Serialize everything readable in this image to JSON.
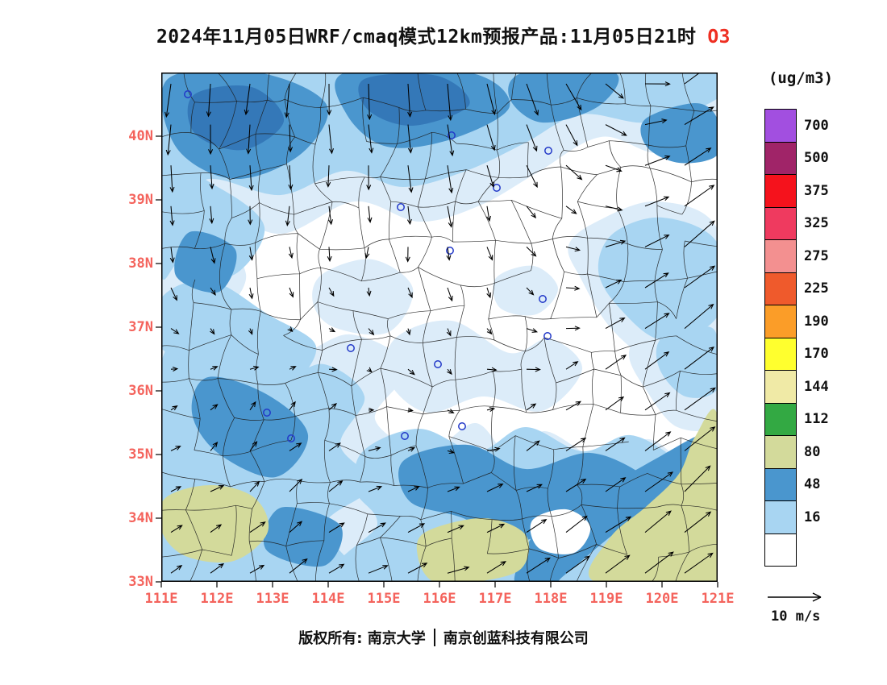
{
  "title": {
    "main": "2024年11月05日WRF/cmaq模式12km预报产品:11月05日21时",
    "species": "O3"
  },
  "colors": {
    "axis_labels": "#f4635c",
    "species_accent": "#ee2f22",
    "boundary_lines": "#1b1b1b",
    "city_marker": "#2238c8",
    "frame": "#000000"
  },
  "axes": {
    "lat_labels": [
      "40N",
      "39N",
      "38N",
      "37N",
      "36N",
      "35N",
      "34N",
      "33N"
    ],
    "lon_labels": [
      "111E",
      "112E",
      "113E",
      "114E",
      "115E",
      "116E",
      "117E",
      "118E",
      "119E",
      "120E",
      "121E"
    ],
    "lat_range": [
      33,
      41
    ],
    "lon_range": [
      111,
      121
    ]
  },
  "colorbar": {
    "unit": "(ug/m3)",
    "cells": [
      {
        "label": "700",
        "color": "#a24fe0"
      },
      {
        "label": "500",
        "color": "#a02468"
      },
      {
        "label": "375",
        "color": "#f5121c"
      },
      {
        "label": "325",
        "color": "#ef3a5f"
      },
      {
        "label": "275",
        "color": "#f39090"
      },
      {
        "label": "225",
        "color": "#ef5a2c"
      },
      {
        "label": "190",
        "color": "#fb9d28"
      },
      {
        "label": "170",
        "color": "#ffff2e"
      },
      {
        "label": "144",
        "color": "#f0eaa6"
      },
      {
        "label": "112",
        "color": "#33a943"
      },
      {
        "label": "80",
        "color": "#d3da9b"
      },
      {
        "label": "48",
        "color": "#4a96ce"
      },
      {
        "label": "16",
        "color": "#a8d5f2"
      },
      {
        "label": "",
        "color": "#ffffff"
      }
    ]
  },
  "wind_legend": {
    "label": "10 m/s",
    "reference_speed": 10
  },
  "footer": {
    "part1": "版权所有: 南京大学",
    "part2": "南京创蓝科技有限公司"
  },
  "chart_data": {
    "type": "heatmap",
    "subtype": "filled-contour concentration map with wind vectors",
    "title": "O3 surface concentration forecast, WRF/CMAQ 12km, 2024-11-05 21:00 local",
    "unit": "ug/m3",
    "lon_range": [
      111,
      121
    ],
    "lat_range": [
      33,
      41
    ],
    "levels": [
      16,
      48,
      80,
      112,
      144,
      170,
      190,
      225,
      275,
      325,
      375,
      500,
      700
    ],
    "palette": {
      "pale": "#dcecf9",
      "light": "#a8d5f2",
      "med": "#4a96ce",
      "dark": "#3478b8",
      "olive": "#d3da9b",
      "white": "#ffffff"
    },
    "regions": [
      {
        "level": "pale",
        "pts": [
          [
            0,
            0
          ],
          [
            690,
            0
          ],
          [
            690,
            60
          ],
          [
            620,
            100
          ],
          [
            545,
            80
          ],
          [
            465,
            125
          ],
          [
            395,
            165
          ],
          [
            320,
            185
          ],
          [
            240,
            160
          ],
          [
            150,
            200
          ],
          [
            70,
            175
          ],
          [
            0,
            215
          ]
        ]
      },
      {
        "level": "pale",
        "pts": [
          [
            0,
            150
          ],
          [
            55,
            185
          ],
          [
            105,
            250
          ],
          [
            75,
            320
          ],
          [
            115,
            385
          ],
          [
            65,
            455
          ],
          [
            105,
            525
          ],
          [
            60,
            595
          ],
          [
            75,
            632
          ],
          [
            0,
            632
          ]
        ]
      },
      {
        "level": "pale",
        "pts": [
          [
            0,
            330
          ],
          [
            80,
            305
          ],
          [
            160,
            350
          ],
          [
            235,
            325
          ],
          [
            305,
            365
          ],
          [
            265,
            430
          ],
          [
            330,
            470
          ],
          [
            390,
            435
          ],
          [
            435,
            480
          ],
          [
            475,
            445
          ],
          [
            545,
            480
          ],
          [
            605,
            455
          ],
          [
            660,
            495
          ],
          [
            690,
            480
          ],
          [
            690,
            632
          ],
          [
            0,
            632
          ]
        ]
      },
      {
        "level": "pale",
        "pts": [
          [
            540,
            185
          ],
          [
            615,
            160
          ],
          [
            690,
            195
          ],
          [
            690,
            330
          ],
          [
            620,
            360
          ],
          [
            560,
            320
          ],
          [
            520,
            255
          ],
          [
            505,
            215
          ]
        ]
      },
      {
        "level": "pale",
        "pts": [
          [
            200,
            250
          ],
          [
            262,
            232
          ],
          [
            312,
            268
          ],
          [
            282,
            322
          ],
          [
            214,
            316
          ],
          [
            188,
            285
          ]
        ]
      },
      {
        "level": "pale",
        "pts": [
          [
            290,
            330
          ],
          [
            360,
            308
          ],
          [
            432,
            348
          ],
          [
            482,
            330
          ],
          [
            522,
            368
          ],
          [
            472,
            420
          ],
          [
            400,
            402
          ],
          [
            330,
            422
          ],
          [
            282,
            382
          ]
        ]
      },
      {
        "level": "pale",
        "pts": [
          [
            415,
            255
          ],
          [
            462,
            240
          ],
          [
            492,
            268
          ],
          [
            465,
            300
          ],
          [
            420,
            292
          ]
        ]
      },
      {
        "level": "pale",
        "pts": [
          [
            600,
            320
          ],
          [
            660,
            300
          ],
          [
            690,
            320
          ],
          [
            690,
            430
          ],
          [
            640,
            440
          ],
          [
            600,
            392
          ],
          [
            580,
            350
          ]
        ]
      },
      {
        "level": "light",
        "pts": [
          [
            0,
            0
          ],
          [
            690,
            0
          ],
          [
            690,
            32
          ],
          [
            605,
            62
          ],
          [
            520,
            52
          ],
          [
            450,
            88
          ],
          [
            378,
            122
          ],
          [
            300,
            142
          ],
          [
            228,
            122
          ],
          [
            148,
            152
          ],
          [
            60,
            132
          ],
          [
            0,
            162
          ]
        ]
      },
      {
        "level": "light",
        "pts": [
          [
            0,
            120
          ],
          [
            70,
            142
          ],
          [
            128,
            192
          ],
          [
            88,
            252
          ],
          [
            28,
            232
          ],
          [
            0,
            252
          ]
        ]
      },
      {
        "level": "light",
        "pts": [
          [
            560,
            200
          ],
          [
            622,
            180
          ],
          [
            690,
            212
          ],
          [
            690,
            302
          ],
          [
            622,
            332
          ],
          [
            568,
            292
          ],
          [
            542,
            246
          ]
        ]
      },
      {
        "level": "light",
        "pts": [
          [
            0,
            360
          ],
          [
            70,
            338
          ],
          [
            142,
            380
          ],
          [
            202,
            362
          ],
          [
            252,
            402
          ],
          [
            222,
            462
          ],
          [
            262,
            512
          ],
          [
            202,
            562
          ],
          [
            232,
            632
          ],
          [
            0,
            632
          ]
        ]
      },
      {
        "level": "light",
        "pts": [
          [
            250,
            470
          ],
          [
            320,
            442
          ],
          [
            392,
            470
          ],
          [
            452,
            440
          ],
          [
            522,
            470
          ],
          [
            582,
            450
          ],
          [
            642,
            482
          ],
          [
            690,
            522
          ],
          [
            690,
            632
          ],
          [
            240,
            632
          ],
          [
            268,
            560
          ],
          [
            242,
            520
          ]
        ]
      },
      {
        "level": "light",
        "pts": [
          [
            0,
            280
          ],
          [
            60,
            258
          ],
          [
            132,
            300
          ],
          [
            192,
            340
          ],
          [
            152,
            392
          ],
          [
            80,
            372
          ],
          [
            0,
            342
          ]
        ]
      },
      {
        "level": "light",
        "pts": [
          [
            620,
            330
          ],
          [
            672,
            315
          ],
          [
            690,
            330
          ],
          [
            690,
            392
          ],
          [
            650,
            402
          ],
          [
            618,
            368
          ]
        ]
      },
      {
        "level": "med",
        "pts": [
          [
            8,
            8
          ],
          [
            120,
            0
          ],
          [
            205,
            40
          ],
          [
            172,
            102
          ],
          [
            90,
            132
          ],
          [
            18,
            92
          ]
        ]
      },
      {
        "level": "med",
        "pts": [
          [
            228,
            0
          ],
          [
            382,
            0
          ],
          [
            432,
            42
          ],
          [
            362,
            82
          ],
          [
            280,
            92
          ],
          [
            230,
            52
          ]
        ]
      },
      {
        "level": "med",
        "pts": [
          [
            450,
            0
          ],
          [
            562,
            0
          ],
          [
            542,
            42
          ],
          [
            472,
            62
          ],
          [
            432,
            32
          ]
        ]
      },
      {
        "level": "med",
        "pts": [
          [
            35,
            198
          ],
          [
            92,
            220
          ],
          [
            72,
            272
          ],
          [
            18,
            252
          ]
        ]
      },
      {
        "level": "med",
        "pts": [
          [
            58,
            378
          ],
          [
            132,
            400
          ],
          [
            182,
            450
          ],
          [
            142,
            502
          ],
          [
            70,
            472
          ],
          [
            38,
            422
          ]
        ]
      },
      {
        "level": "med",
        "pts": [
          [
            148,
            540
          ],
          [
            222,
            562
          ],
          [
            202,
            612
          ],
          [
            130,
            592
          ]
        ]
      },
      {
        "level": "med",
        "pts": [
          [
            300,
            482
          ],
          [
            380,
            462
          ],
          [
            452,
            492
          ],
          [
            532,
            472
          ],
          [
            602,
            502
          ],
          [
            642,
            542
          ],
          [
            602,
            582
          ],
          [
            522,
            552
          ],
          [
            442,
            582
          ],
          [
            372,
            552
          ],
          [
            308,
            532
          ]
        ]
      },
      {
        "level": "med",
        "pts": [
          [
            438,
            632
          ],
          [
            472,
            560
          ],
          [
            542,
            520
          ],
          [
            612,
            480
          ],
          [
            672,
            448
          ],
          [
            690,
            458
          ],
          [
            690,
            492
          ],
          [
            632,
            522
          ],
          [
            562,
            572
          ],
          [
            502,
            622
          ],
          [
            486,
            632
          ]
        ]
      },
      {
        "level": "med",
        "pts": [
          [
            600,
            58
          ],
          [
            662,
            38
          ],
          [
            690,
            58
          ],
          [
            690,
            102
          ],
          [
            642,
            112
          ],
          [
            602,
            92
          ]
        ]
      },
      {
        "level": "dark",
        "pts": [
          [
            40,
            28
          ],
          [
            112,
            18
          ],
          [
            152,
            60
          ],
          [
            102,
            96
          ],
          [
            42,
            76
          ]
        ]
      },
      {
        "level": "dark",
        "pts": [
          [
            252,
            8
          ],
          [
            342,
            4
          ],
          [
            382,
            40
          ],
          [
            312,
            66
          ],
          [
            256,
            46
          ]
        ]
      },
      {
        "level": "olive",
        "pts": [
          [
            538,
            632
          ],
          [
            556,
            578
          ],
          [
            602,
            538
          ],
          [
            642,
            498
          ],
          [
            662,
            452
          ],
          [
            690,
            428
          ],
          [
            690,
            632
          ]
        ]
      },
      {
        "level": "olive",
        "pts": [
          [
            5,
            528
          ],
          [
            62,
            512
          ],
          [
            116,
            528
          ],
          [
            132,
            570
          ],
          [
            90,
            606
          ],
          [
            30,
            600
          ],
          [
            0,
            568
          ]
        ]
      },
      {
        "level": "olive",
        "pts": [
          [
            328,
            570
          ],
          [
            400,
            553
          ],
          [
            452,
            574
          ],
          [
            446,
            616
          ],
          [
            390,
            632
          ],
          [
            338,
            632
          ],
          [
            318,
            600
          ]
        ]
      },
      {
        "level": "white",
        "pts": [
          [
            460,
            556
          ],
          [
            502,
            542
          ],
          [
            532,
            564
          ],
          [
            512,
            596
          ],
          [
            468,
            590
          ]
        ]
      }
    ],
    "city_markers": [
      [
        33,
        27
      ],
      [
        360,
        78
      ],
      [
        480,
        97
      ],
      [
        416,
        143
      ],
      [
        297,
        167
      ],
      [
        358,
        221
      ],
      [
        473,
        281
      ],
      [
        235,
        342
      ],
      [
        479,
        327
      ],
      [
        343,
        362
      ],
      [
        131,
        422
      ],
      [
        161,
        454
      ],
      [
        302,
        451
      ],
      [
        373,
        439
      ]
    ],
    "wind": {
      "reference": 10,
      "grid": [
        [
          [
            -1,
            -9
          ],
          [
            0,
            -8
          ],
          [
            1,
            -9
          ],
          [
            4,
            -7
          ],
          [
            7,
            7
          ]
        ],
        [
          [
            1,
            -4
          ],
          [
            0,
            -3
          ],
          [
            0,
            -4
          ],
          [
            3,
            -1
          ],
          [
            9,
            8
          ]
        ],
        [
          [
            2,
            1
          ],
          [
            2,
            2
          ],
          [
            1,
            -1
          ],
          [
            4,
            3
          ],
          [
            8,
            7
          ]
        ],
        [
          [
            3,
            2
          ],
          [
            4,
            3
          ],
          [
            5,
            2
          ],
          [
            6,
            4
          ],
          [
            7,
            6
          ]
        ]
      ]
    }
  }
}
